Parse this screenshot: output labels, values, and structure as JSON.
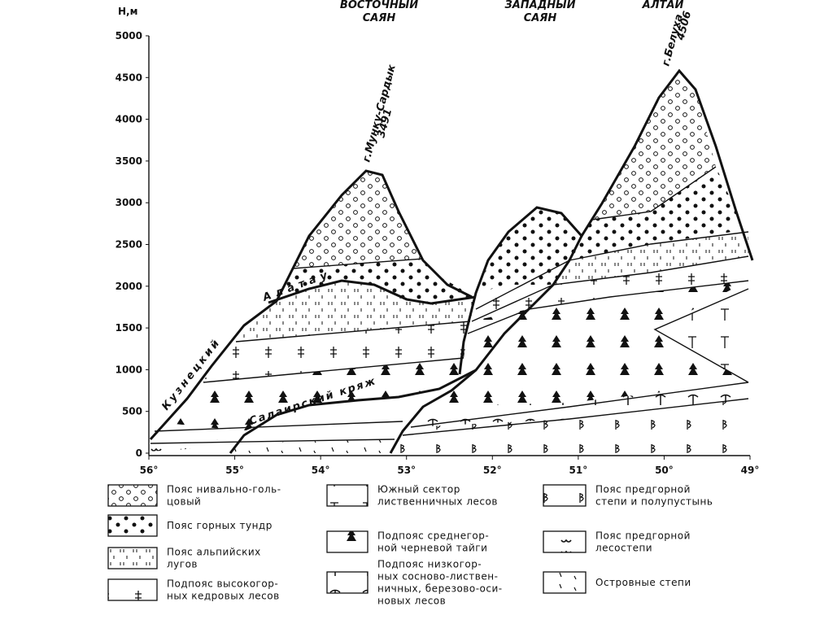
{
  "axes": {
    "y_label": "Н,м",
    "y_ticks": [
      0,
      500,
      1000,
      1500,
      2000,
      2500,
      3000,
      3500,
      4000,
      4500,
      5000
    ],
    "x_ticks": [
      "56°",
      "55°",
      "54°",
      "53°",
      "52°",
      "51°",
      "50°",
      "49°"
    ]
  },
  "regions": [
    {
      "lines": [
        "ВОСТОЧНЫЙ",
        "САЯН"
      ]
    },
    {
      "lines": [
        "ЗАПАДНЫЙ",
        "САЯН"
      ]
    },
    {
      "lines": [
        "АЛТАЙ"
      ]
    }
  ],
  "peaks": [
    {
      "name": "г.Мунку-Сардык",
      "height": "3491"
    },
    {
      "name": "г.Белуха",
      "height": "4506"
    }
  ],
  "ridges": [
    "Кузнецкий",
    "Алатау",
    "Салаирский кряж"
  ],
  "legend": [
    {
      "lines": [
        "Пояс нивально-голь-",
        "цовый"
      ]
    },
    {
      "lines": [
        "Пояс горных тундр"
      ]
    },
    {
      "lines": [
        "Пояс альпийских",
        "лугов"
      ]
    },
    {
      "lines": [
        "Подпояс высокогор-",
        "ных кедровых лесов"
      ]
    },
    {
      "lines": [
        "Южный сектор",
        "лиственничных лесов"
      ]
    },
    {
      "lines": [
        "Подпояс среднегор-",
        "ной черневой тайги"
      ]
    },
    {
      "lines": [
        "Подпояс низкогор-",
        "ных сосново-листвен-",
        "ничных, березово-оси-",
        "новых лесов"
      ]
    },
    {
      "lines": [
        "Пояс предгорной",
        "степи и полупустынь"
      ]
    },
    {
      "lines": [
        "Пояс предгорной",
        "лесостепи"
      ]
    },
    {
      "lines": [
        "Островные степи"
      ]
    }
  ]
}
